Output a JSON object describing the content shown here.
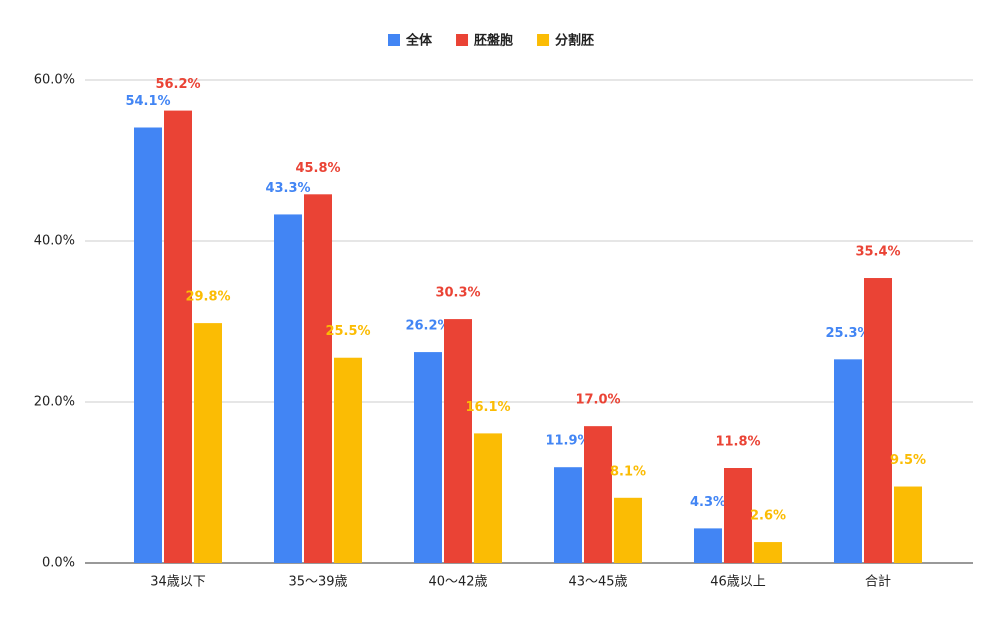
{
  "chart_data": {
    "type": "bar",
    "categories": [
      "34歳以下",
      "35〜39歳",
      "40〜42歳",
      "43〜45歳",
      "46歳以上",
      "合計"
    ],
    "series": [
      {
        "name": "全体",
        "color": "#4285f4",
        "values": [
          54.1,
          43.3,
          26.2,
          11.9,
          4.3,
          25.3
        ],
        "value_labels": [
          "54.1%",
          "43.3%",
          "26.2%",
          "11.9%",
          "4.3%",
          "25.3%"
        ]
      },
      {
        "name": "胚盤胞",
        "color": "#ea4335",
        "values": [
          56.2,
          45.8,
          30.3,
          17.0,
          11.8,
          35.4
        ],
        "value_labels": [
          "56.2%",
          "45.8%",
          "30.3%",
          "17.0%",
          "11.8%",
          "35.4%"
        ]
      },
      {
        "name": "分割胚",
        "color": "#fbbc04",
        "values": [
          29.8,
          25.5,
          16.1,
          8.1,
          2.6,
          9.5
        ],
        "value_labels": [
          "29.8%",
          "25.5%",
          "16.1%",
          "8.1%",
          "2.6%",
          "9.5%"
        ]
      }
    ],
    "ylim": [
      0,
      60
    ],
    "yticks": [
      {
        "value": 0,
        "label": "0.0%"
      },
      {
        "value": 20,
        "label": "20.0%"
      },
      {
        "value": 40,
        "label": "40.0%"
      },
      {
        "value": 60,
        "label": "60.0%"
      }
    ],
    "grid": true,
    "legend": "top"
  }
}
